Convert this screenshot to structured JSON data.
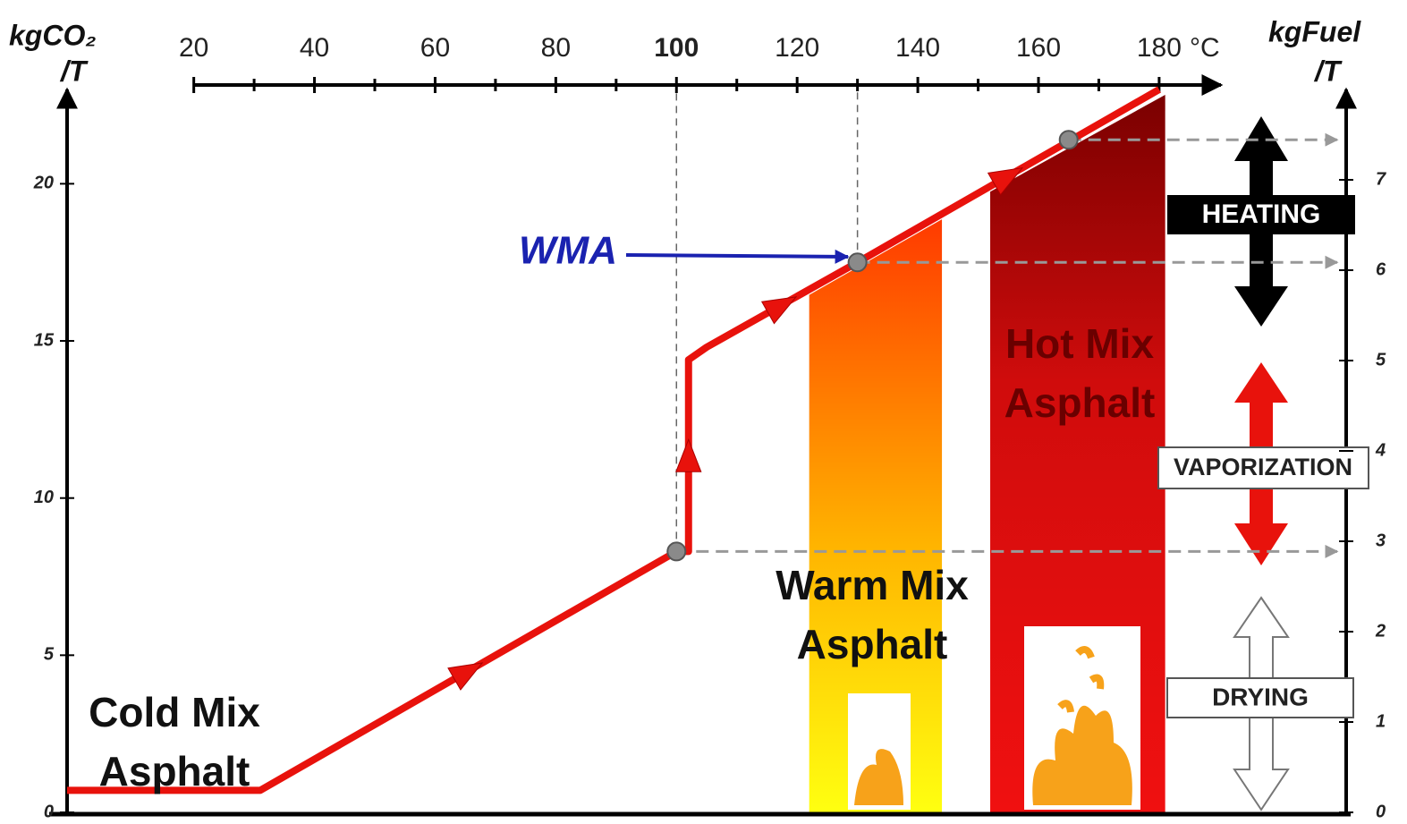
{
  "chart_data": {
    "type": "line",
    "x_unit": "°C",
    "ylabel": [
      "kgCO₂",
      "/T"
    ],
    "y2label": [
      "kgFuel",
      "/T"
    ],
    "xlim": [
      -1,
      211
    ],
    "xticks": [
      20,
      40,
      60,
      80,
      100,
      120,
      140,
      160,
      180
    ],
    "xminorticks": [
      30,
      50,
      70,
      90,
      110,
      130,
      150,
      170
    ],
    "xtick_bold": [
      100
    ],
    "ylim": [
      0,
      23
    ],
    "yticks": [
      0,
      5,
      10,
      15,
      20
    ],
    "y2lim": [
      0,
      8
    ],
    "y2ticks": [
      0,
      1,
      2,
      3,
      4,
      5,
      6,
      7
    ],
    "series": [
      {
        "color": "#e8120c",
        "x": [
          -1,
          31,
          100,
          102,
          102,
          105,
          130,
          180
        ],
        "values": [
          0.7,
          0.7,
          8.3,
          8.3,
          14.4,
          14.8,
          17.5,
          23
        ]
      },
      {
        "color": "#8a8a8a",
        "x": [
          100,
          130,
          165
        ],
        "values": [
          8.3,
          17.5,
          21.4
        ]
      }
    ],
    "regions": [
      {
        "label_lines": [
          "Cold Mix",
          "Asphalt"
        ]
      },
      {
        "label_lines": [
          "Warm Mix",
          "Asphalt"
        ],
        "x": [
          122,
          144
        ]
      },
      {
        "label_lines": [
          "Hot Mix",
          "Asphalt"
        ],
        "x": [
          152,
          181
        ]
      }
    ],
    "annotations": [
      {
        "text": "WMA",
        "color": "#1a22b0"
      },
      {
        "text": "HEATING"
      },
      {
        "text": "VAPORIZATION"
      },
      {
        "text": "DRYING"
      }
    ]
  }
}
